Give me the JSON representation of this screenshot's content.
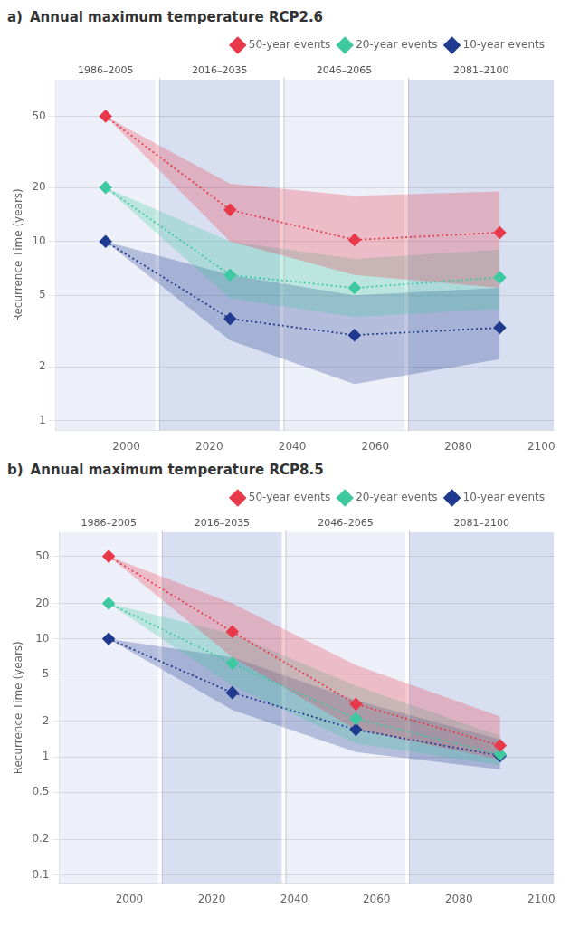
{
  "chart_data": [
    {
      "type": "line",
      "panel_label": "a)",
      "title": "Annual maximum temperature RCP2.6",
      "y_label": "Recurrence Time (years)",
      "x": [
        1995,
        2025,
        2055,
        2090
      ],
      "series": [
        {
          "name": "50-year events",
          "color": "#e8394a",
          "marker": "diamond",
          "line_style": "dotted",
          "values": [
            50,
            15,
            10.2,
            11.2
          ],
          "lower": [
            50,
            10,
            6.5,
            5.5
          ],
          "upper": [
            50,
            21,
            18,
            19
          ]
        },
        {
          "name": "20-year events",
          "color": "#3fc9a0",
          "marker": "diamond",
          "line_style": "dotted",
          "values": [
            20,
            6.5,
            5.5,
            6.3
          ],
          "lower": [
            20,
            4.8,
            3.8,
            4.2
          ],
          "upper": [
            20,
            10,
            8,
            9
          ]
        },
        {
          "name": "10-year events",
          "color": "#1f3a8f",
          "marker": "diamond",
          "line_style": "dotted",
          "values": [
            10,
            3.7,
            3.0,
            3.3
          ],
          "lower": [
            10,
            2.8,
            1.6,
            2.2
          ],
          "upper": [
            10,
            6.5,
            5,
            5.5
          ]
        }
      ],
      "periods": [
        {
          "label": "1986–2005",
          "start": 1983,
          "end": 2007,
          "color": "#edf0f8"
        },
        {
          "label": "2016–2035",
          "start": 2008,
          "end": 2037,
          "color": "#d8dff0"
        },
        {
          "label": "2046–2065",
          "start": 2038,
          "end": 2067,
          "color": "#edf0f8"
        },
        {
          "label": "2081–2100",
          "start": 2068,
          "end": 2103,
          "color": "#d8dff0"
        }
      ],
      "xlim": [
        1983,
        2103
      ],
      "xticks": [
        2000,
        2020,
        2040,
        2060,
        2080,
        2100
      ],
      "ylim": [
        0.88,
        80
      ],
      "yticks": [
        1,
        2,
        5,
        10,
        20,
        50
      ],
      "log": "y",
      "grid": "y",
      "legend": "upper right"
    },
    {
      "type": "line",
      "panel_label": "b)",
      "title": "Annual maximum temperature RCP8.5",
      "y_label": "Recurrence Time (years)",
      "x": [
        1995,
        2025,
        2055,
        2090
      ],
      "series": [
        {
          "name": "50-year events",
          "color": "#e8394a",
          "marker": "diamond",
          "line_style": "dotted",
          "values": [
            50,
            11.5,
            2.8,
            1.25
          ],
          "lower": [
            50,
            7,
            1.7,
            0.95
          ],
          "upper": [
            50,
            20,
            6,
            2.2
          ]
        },
        {
          "name": "20-year events",
          "color": "#3fc9a0",
          "marker": "diamond",
          "line_style": "dotted",
          "values": [
            20,
            6.2,
            2.1,
            1.05
          ],
          "lower": [
            20,
            4,
            1.3,
            0.85
          ],
          "upper": [
            20,
            11,
            4,
            1.5
          ]
        },
        {
          "name": "10-year events",
          "color": "#1f3a8f",
          "marker": "diamond",
          "line_style": "dotted",
          "values": [
            10,
            3.5,
            1.7,
            1.02
          ],
          "lower": [
            10,
            2.5,
            1.1,
            0.78
          ],
          "upper": [
            10,
            7,
            3,
            1.4
          ]
        }
      ],
      "periods": [
        {
          "label": "1986–2005",
          "start": 1983,
          "end": 2007,
          "color": "#edf0f8"
        },
        {
          "label": "2016–2035",
          "start": 2008,
          "end": 2037,
          "color": "#d8dff0"
        },
        {
          "label": "2046–2065",
          "start": 2038,
          "end": 2067,
          "color": "#edf0f8"
        },
        {
          "label": "2081–2100",
          "start": 2068,
          "end": 2103,
          "color": "#d8dff0"
        }
      ],
      "xlim": [
        1983,
        2103
      ],
      "xticks": [
        2000,
        2020,
        2040,
        2060,
        2080,
        2100
      ],
      "ylim": [
        0.085,
        80
      ],
      "yticks": [
        0.1,
        0.2,
        0.5,
        1,
        2,
        5,
        10,
        20,
        50
      ],
      "log": "y",
      "grid": "y",
      "legend": "upper right"
    }
  ]
}
